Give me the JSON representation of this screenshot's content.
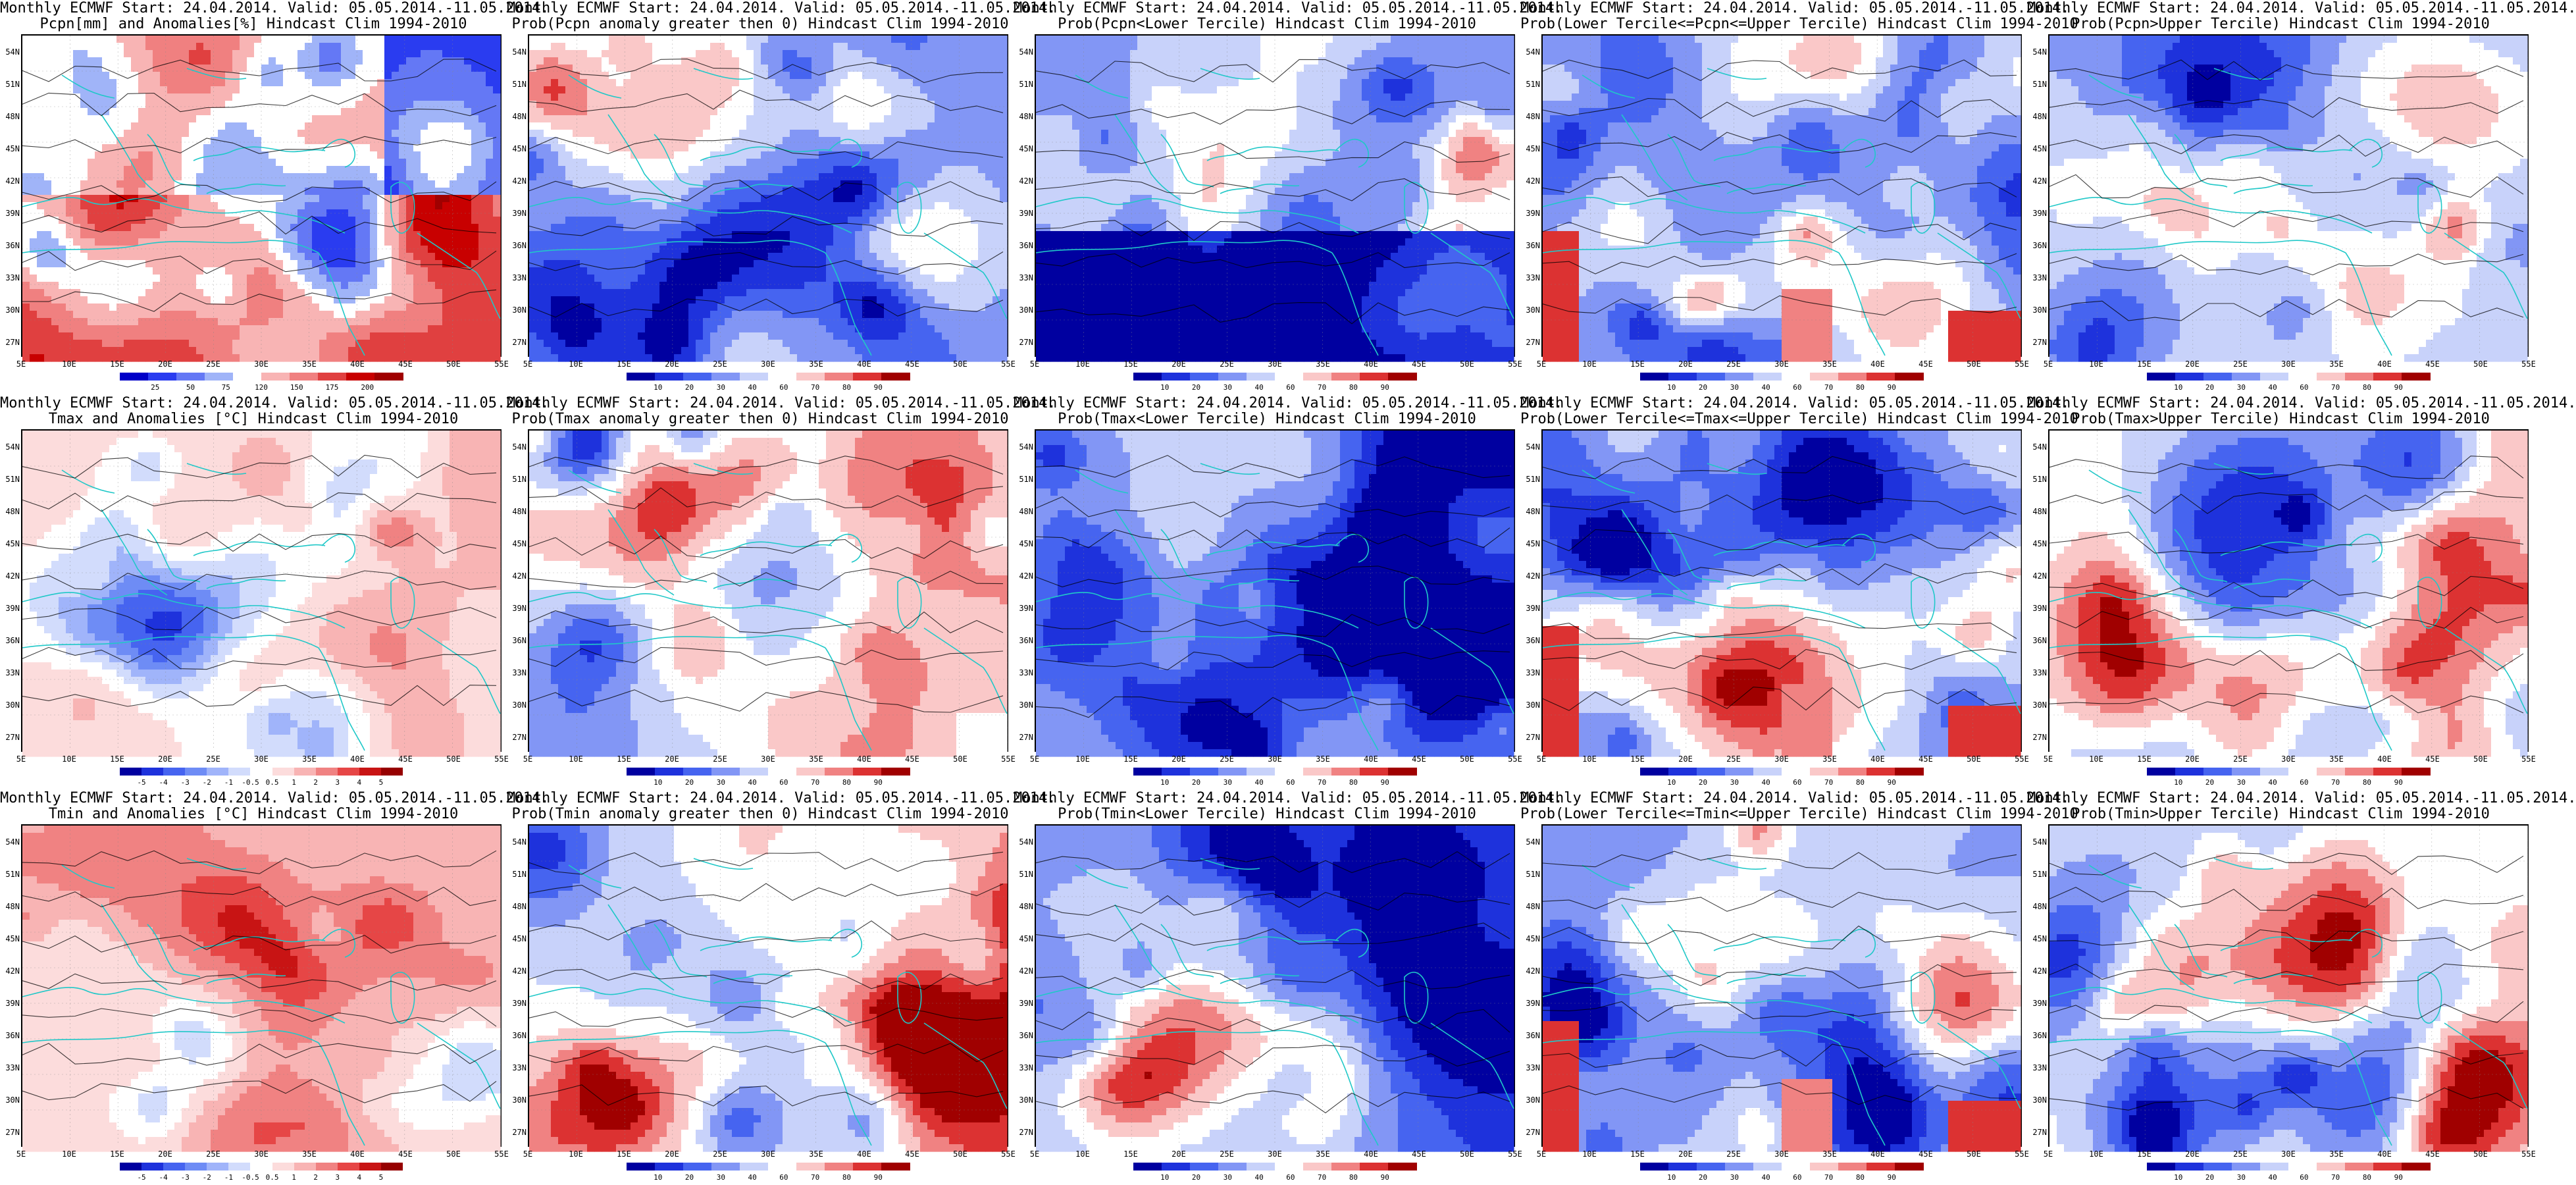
{
  "panels": [
    {
      "title1": "Monthly ECMWF Start: 24.04.2014. Valid: 05.05.2014.-11.05.2014.",
      "title2": "Pcpn[mm] and Anomalies[%] Hindcast Clim 1994-2010",
      "cbar": "pcpn",
      "scheme": "pcpn_anom"
    },
    {
      "title1": "Monthly ECMWF Start: 24.04.2014. Valid: 05.05.2014.-11.05.2014.",
      "title2": "Prob(Pcpn anomaly greater then 0) Hindcast Clim 1994-2010",
      "cbar": "prob",
      "scheme": "blue_white"
    },
    {
      "title1": "Monthly ECMWF Start: 24.04.2014. Valid: 05.05.2014.-11.05.2014.",
      "title2": "Prob(Pcpn<Lower Tercile) Hindcast Clim 1994-2010",
      "cbar": "prob",
      "scheme": "deep_blue_south"
    },
    {
      "title1": "Monthly ECMWF Start: 24.04.2014. Valid: 05.05.2014.-11.05.2014.",
      "title2": "Prob(Lower Tercile<=Pcpn<=Upper Tercile) Hindcast Clim 1994-2010",
      "cbar": "prob",
      "scheme": "blue_mixed"
    },
    {
      "title1": "Monthly ECMWF Start: 24.04.2014. Valid: 05.05.2014.-11.05.2014.",
      "title2": "Prob(Pcpn>Upper Tercile) Hindcast Clim 1994-2010",
      "cbar": "prob",
      "scheme": "blue_light"
    },
    {
      "title1": "Monthly ECMWF Start: 24.04.2014. Valid: 05.05.2014.-11.05.2014.",
      "title2": "Tmax and Anomalies [°C] Hindcast Clim 1994-2010",
      "cbar": "temp",
      "scheme": "pink"
    },
    {
      "title1": "Monthly ECMWF Start: 24.04.2014. Valid: 05.05.2014.-11.05.2014.",
      "title2": "Prob(Tmax anomaly greater then 0) Hindcast Clim 1994-2010",
      "cbar": "prob",
      "scheme": "red_east"
    },
    {
      "title1": "Monthly ECMWF Start: 24.04.2014. Valid: 05.05.2014.-11.05.2014.",
      "title2": "Prob(Tmax<Lower Tercile) Hindcast Clim 1994-2010",
      "cbar": "prob",
      "scheme": "deep_blue_east"
    },
    {
      "title1": "Monthly ECMWF Start: 24.04.2014. Valid: 05.05.2014.-11.05.2014.",
      "title2": "Prob(Lower Tercile<=Tmax<=Upper Tercile) Hindcast Clim 1994-2010",
      "cbar": "prob",
      "scheme": "blue_mixed"
    },
    {
      "title1": "Monthly ECMWF Start: 24.04.2014. Valid: 05.05.2014.-11.05.2014.",
      "title2": "Prob(Tmax>Upper Tercile) Hindcast Clim 1994-2010",
      "cbar": "prob",
      "scheme": "mixed_redblue"
    },
    {
      "title1": "Monthly ECMWF Start: 24.04.2014. Valid: 05.05.2014.-11.05.2014.",
      "title2": "Tmin and Anomalies [°C] Hindcast Clim 1994-2010",
      "cbar": "temp",
      "scheme": "pink"
    },
    {
      "title1": "Monthly ECMWF Start: 24.04.2014. Valid: 05.05.2014.-11.05.2014.",
      "title2": "Prob(Tmin anomaly greater then 0) Hindcast Clim 1994-2010",
      "cbar": "prob",
      "scheme": "red_east_strong"
    },
    {
      "title1": "Monthly ECMWF Start: 24.04.2014. Valid: 05.05.2014.-11.05.2014.",
      "title2": "Prob(Tmin<Lower Tercile) Hindcast Clim 1994-2010",
      "cbar": "prob",
      "scheme": "deep_blue_east"
    },
    {
      "title1": "Monthly ECMWF Start: 24.04.2014. Valid: 05.05.2014.-11.05.2014.",
      "title2": "Prob(Lower Tercile<=Tmin<=Upper Tercile) Hindcast Clim 1994-2010",
      "cbar": "prob",
      "scheme": "blue_mixed"
    },
    {
      "title1": "Monthly ECMWF Start: 24.04.2014. Valid: 05.05.2014.-11.05.2014.",
      "title2": "Prob(Tmin>Upper Tercile) Hindcast Clim 1994-2010",
      "cbar": "prob",
      "scheme": "mixed_redblue"
    }
  ],
  "axes": {
    "lat_labels": [
      "54N",
      "51N",
      "48N",
      "45N",
      "42N",
      "39N",
      "36N",
      "33N",
      "30N",
      "27N"
    ],
    "lon_labels": [
      "5E",
      "10E",
      "15E",
      "20E",
      "25E",
      "30E",
      "35E",
      "40E",
      "45E",
      "50E",
      "55E"
    ]
  },
  "colorbars": {
    "pcpn": {
      "ticks": [
        "25",
        "50",
        "75",
        "120",
        "150",
        "175",
        "200"
      ],
      "colors": [
        "#0000c8",
        "#2a3cf0",
        "#6478f5",
        "#a0b4f8",
        "#ffffff",
        "#f8b4b4",
        "#f08080",
        "#e04040",
        "#c80000",
        "#a00000"
      ]
    },
    "prob": {
      "ticks": [
        "10",
        "20",
        "30",
        "40",
        "60",
        "70",
        "80",
        "90"
      ],
      "colors": [
        "#0000a0",
        "#1e32dc",
        "#4664f0",
        "#8296f5",
        "#c8d2fa",
        "#ffffff",
        "#fac8c8",
        "#f08282",
        "#dc3232",
        "#a00000"
      ]
    },
    "temp": {
      "ticks": [
        "-5",
        "-4",
        "-3",
        "-2",
        "-1",
        "-0.5",
        "0.5",
        "1",
        "2",
        "3",
        "4",
        "5"
      ],
      "colors": [
        "#0000a0",
        "#1e32dc",
        "#4664f0",
        "#6e8cf5",
        "#a0b4fa",
        "#d2dcfc",
        "#ffffff",
        "#fcdcdc",
        "#f8b4b4",
        "#f08282",
        "#e64646",
        "#c81414",
        "#960000"
      ]
    }
  },
  "colors": {
    "coast": "#20c8c8",
    "contour": "#000000",
    "frame": "#000000"
  }
}
